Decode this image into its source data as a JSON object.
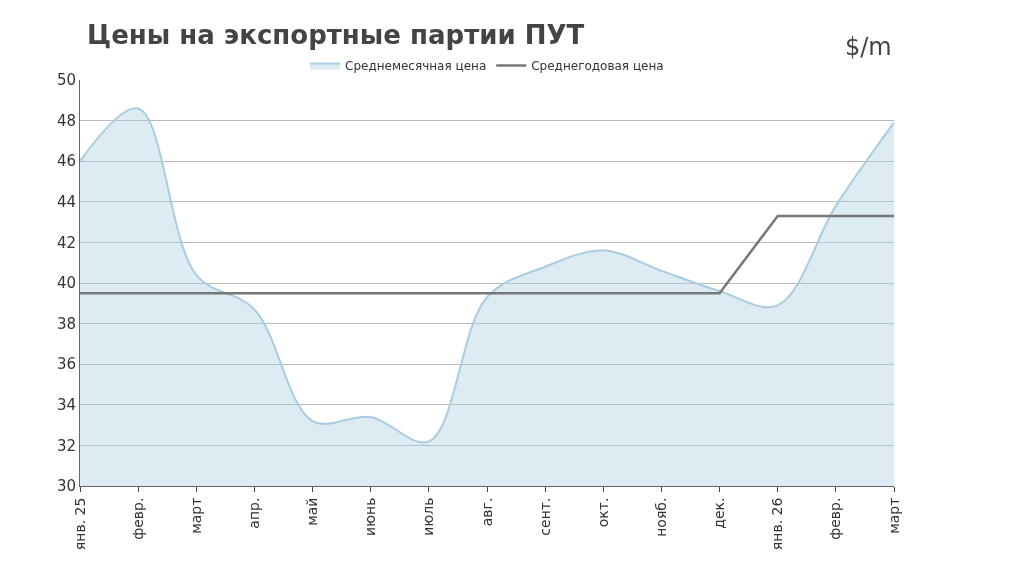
{
  "chart_data": {
    "type": "area",
    "title": "Цены на экспортные партии ПУТ",
    "annotations": [
      "$/m"
    ],
    "categories": [
      "янв. 25",
      "февр.",
      "март",
      "апр.",
      "май",
      "июнь",
      "июль",
      "авг.",
      "сент.",
      "окт.",
      "нояб.",
      "дек.",
      "янв. 26",
      "февр.",
      "март"
    ],
    "series": [
      {
        "name": "Среднемесячная цена",
        "color": "#a9cce0",
        "values": [
          46.0,
          48.6,
          40.4,
          38.7,
          33.2,
          33.4,
          32.2,
          39.3,
          40.8,
          41.6,
          40.6,
          39.6,
          38.9,
          43.8,
          47.9
        ]
      },
      {
        "name": "Среднегодовая цена",
        "type": "line",
        "color": "#777777",
        "values": [
          39.5,
          39.5,
          39.5,
          39.5,
          39.5,
          39.5,
          39.5,
          39.5,
          39.5,
          39.5,
          39.5,
          39.5,
          43.3,
          43.3,
          43.3
        ]
      }
    ],
    "ylim": [
      30,
      50
    ],
    "yticks": [
      30,
      32,
      34,
      36,
      38,
      40,
      42,
      44,
      46,
      48,
      50
    ],
    "grid": "y",
    "legend": "top",
    "marker": "none"
  }
}
